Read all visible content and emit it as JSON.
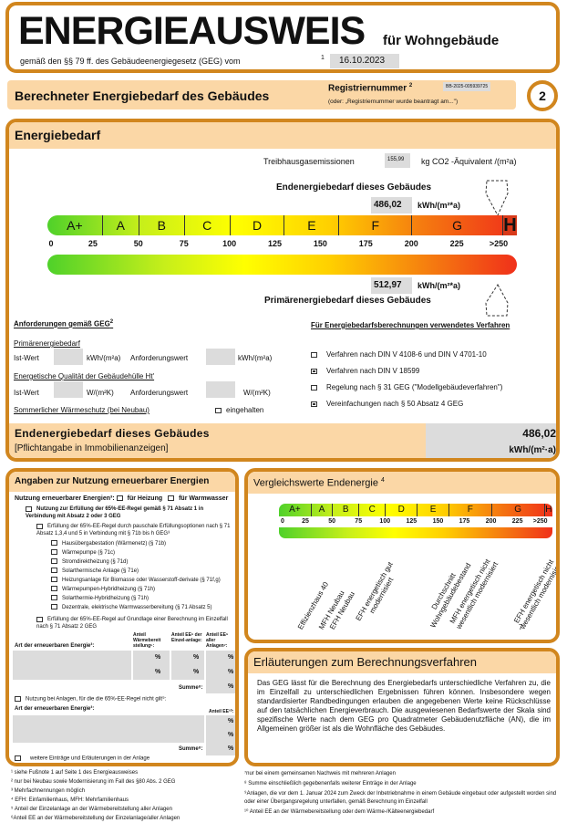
{
  "header": {
    "title": "ENERGIEAUSWEIS",
    "subtitle": "für Wohngebäude",
    "law": "gemäß den §§ 79 ff. des Gebäudeenergiegesetz (GEG) vom",
    "law_note": "1",
    "date": "16.10.2023"
  },
  "banner": {
    "title": "Berechneter Energiebedarf des Gebäudes",
    "reg_label": "Registriernummer",
    "reg_note": "2",
    "reg_value": "BB-2025-005939725",
    "reg_alt": "(oder: „Registriernummer wurde beantragt am...\")",
    "page": "2"
  },
  "energiebedarf": {
    "title": "Energiebedarf",
    "ghg_label": "Treibhausgasemissionen",
    "ghg_value": "155,99",
    "ghg_unit": "kg CO2 -Äquivalent /(m²a)",
    "end_label": "Endenergiebedarf dieses Gebäudes",
    "end_value": "486,02",
    "end_unit": "kWh/(m²*a)",
    "prim_label": "Primärenergiebedarf dieses Gebäudes",
    "prim_value": "512,97",
    "prim_unit": "kWh/(m²*a)",
    "current_class": "H"
  },
  "scale": {
    "classes": [
      {
        "label": "A+",
        "from": 0,
        "to": 30
      },
      {
        "label": "A",
        "from": 30,
        "to": 50
      },
      {
        "label": "B",
        "from": 50,
        "to": 75
      },
      {
        "label": "C",
        "from": 75,
        "to": 100
      },
      {
        "label": "D",
        "from": 100,
        "to": 130
      },
      {
        "label": "E",
        "from": 130,
        "to": 160
      },
      {
        "label": "F",
        "from": 160,
        "to": 200
      },
      {
        "label": "G",
        "from": 200,
        "to": 250
      },
      {
        "label": "H",
        "from": 250,
        "to": 258
      }
    ],
    "ticks": [
      "0",
      "25",
      "50",
      "75",
      "100",
      "125",
      "150",
      "175",
      "200",
      "225",
      ">250"
    ],
    "colors": [
      "#4fd12a",
      "#c7ef1a",
      "#ffff00",
      "#ffd000",
      "#f57a10",
      "#f0301a"
    ]
  },
  "requirements": {
    "title": "Anforderungen gemäß GEG",
    "title_note": "2",
    "prim_heading": "Primärenergiebedarf",
    "ist": "Ist-Wert",
    "kwh": "kWh/(m²a)",
    "anf": "Anforderungswert",
    "ht_heading": "Energetische Qualität der Gebäudehülle Ht'",
    "wmk": "W/(m²K)",
    "summer": "Sommerlicher Wärmeschutz (bei Neubau)",
    "summer_check": "eingehalten"
  },
  "methods": {
    "title": "Für Energiebedarfsberechnungen verwendetes Verfahren",
    "items": [
      {
        "label": "Verfahren nach DIN V 4108-6 und DIN V 4701-10",
        "checked": false
      },
      {
        "label": "Verfahren nach DIN V 18599",
        "checked": true
      },
      {
        "label": "Regelung nach § 31 GEG (\"Modellgebäudeverfahren\")",
        "checked": false
      },
      {
        "label": "Vereinfachungen nach § 50 Absatz 4 GEG",
        "checked": true
      }
    ]
  },
  "end_summary": {
    "title": "Endenergiebedarf dieses Gebäudes",
    "note": "[Pflichtangabe in Immobilienanzeigen]",
    "value": "486,02",
    "unit": "kWh/(m²·a)"
  },
  "renewables": {
    "title": "Angaben zur Nutzung erneuerbarer Energien",
    "use_label": "Nutzung erneuerbarer Energien³:",
    "heat": "für Heizung",
    "water": "für Warmwasser",
    "rule65": "Nutzung zur Erfüllung der 65%-EE-Regel gemäß § 71 Absatz 1 in Verbindung mit Absatz 2 oder 3 GEG",
    "flat": "Erfüllung der 65%-EE-Regel durch pauschale Erfüllungsoptionen nach § 71 Absatz 1,3,4 und 5 in Verbindung mit § 71b bis h GEG³",
    "options": [
      "Hausübergabestation (Wärmenetz) (§ 71b)",
      "Wärmepumpe (§ 71c)",
      "Stromdirektheizung (§ 71d)",
      "Solarthermische Anlage (§ 71e)",
      "Heizungsanlage für Biomasse oder Wasserstoff-derivate (§ 71f,g)",
      "Wärmepumpen-Hybridheizung (§ 71h)",
      "Solarthermie-Hybridheizung (§ 71h)",
      "Dezentrale, elektrische Warmwasserbereitung (§ 71 Absatz 5)"
    ],
    "calc": "Erfüllung der 65%-EE-Regel auf Grundlage einer Berechnung im Einzelfall nach § 71 Absatz 2 GEG",
    "art": "Art der erneuerbaren Energie³:",
    "col1": "Anteil Wärmebereit stellung⁵:",
    "col2": "Anteil EE⁶ der Einzel-anlage:",
    "col3": "Anteil EE⁶ aller Anlagen⁷:",
    "pct": "%",
    "sum": "Summe⁸:",
    "other": "Nutzung bei Anlagen, für die die 65%-EE-Regel nicht gilt⁹:",
    "col_ee": "Anteil EE¹⁰:",
    "more": "weitere Einträge und Erläuterungen in der Anlage"
  },
  "compare": {
    "title": "Vergleichswerte Endenergie",
    "title_note": "4",
    "refs": [
      {
        "label": "Effizienzhaus 40",
        "value": 25
      },
      {
        "label": "MFH Neubau",
        "value": 45
      },
      {
        "label": "EFH Neubau",
        "value": 55
      },
      {
        "label": "EFH energetisch gut modernisiert",
        "value": 75
      },
      {
        "label": "Durchschnitt Wohngebäudebestand",
        "value": 140
      },
      {
        "label": "MFH energetisch nicht wesentlich modernisiert",
        "value": 165
      },
      {
        "label": "EFH energetisch nicht wesentlich modernisiert",
        "value": 225
      }
    ],
    "footer": "7"
  },
  "explain": {
    "title": "Erläuterungen zum Berechnungsverfahren",
    "text": "Das GEG lässt für die Berechnung des Energiebedarfs unterschiedliche Verfahren zu, die im Einzelfall zu unterschiedlichen Ergebnissen führen können. Insbesondere wegen standardisierter Randbedingungen erlauben die angegebenen Werte keine Rückschlüsse auf den tatsächlichen Energieverbrauch. Die ausgewiesenen Bedarfswerte der Skala sind spezifische Werte nach dem GEG pro Quadratmeter Gebäudenutzfläche (AN), die im Allgemeinen größer ist als die Wohnfläche des Gebäudes."
  },
  "footnotes_left": [
    "¹ siehe Fußnote 1 auf Seite 1 des Energieausweises",
    "² nur bei Neubau sowie Modernisierung im Fall des §80 Abs. 2 GEG",
    "³ Mehrfachnennungen möglich",
    "⁴ EFH: Einfamilienhaus, MFH: Mehrfamilienhaus",
    "⁵ Anteil der Einzelanlage an der Wärmebereitstellung aller Anlagen",
    "⁶Anteil EE an der Wärmebereitstellung der Einzelanlage/aller Anlagen"
  ],
  "footnotes_right": [
    "⁷nur bei einem gemeinsamen Nachweis mit mehreren Anlagen",
    "⁸ Summe einschließlich gegebenenfalls weiterer Einträge in der Anlage",
    "⁹Anlagen, die vor dem 1. Januar 2024 zum Zweck der Inbetriebnahme in einem Gebäude eingebaut oder aufgestellt worden sind oder einer Übergangsregelung unterfallen, gemäß Berechnung im Einzelfall",
    "¹⁰ Anteil EE an der Wärmebereitstellung oder dem Wärme-/Kälteenergiebedarf"
  ]
}
